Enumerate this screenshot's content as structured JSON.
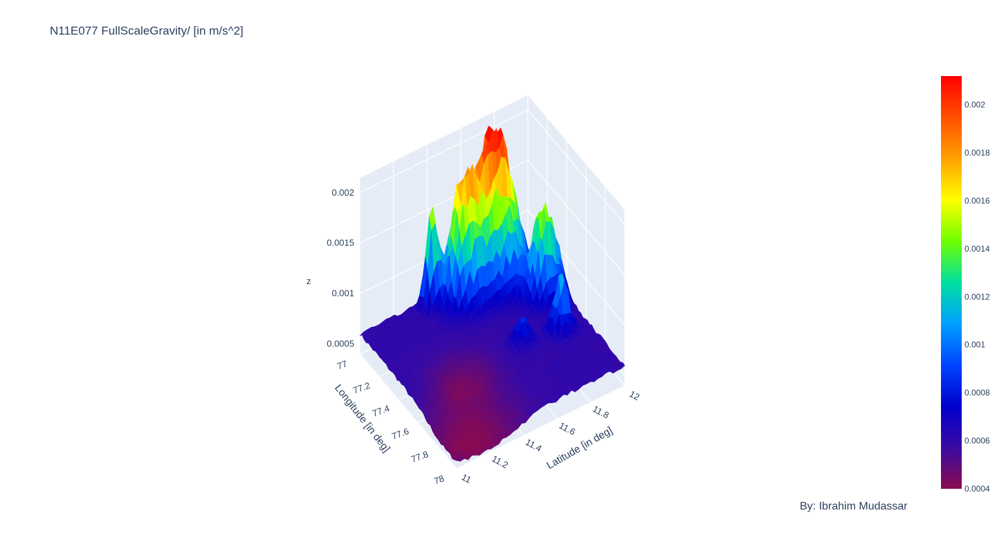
{
  "chart_data": {
    "type": "surface",
    "title": "N11E077 FullScaleGravity/ [in m/s^2]",
    "annotation": "By: Ibrahim Mudassar",
    "colorscale": [
      "#8b0a50",
      "#3a0aa3",
      "#0000cc",
      "#0044ff",
      "#00a0ff",
      "#00e0a0",
      "#70ff00",
      "#ffff00",
      "#ffa000",
      "#ff5000",
      "#ff0000"
    ],
    "x_axis": {
      "title": "Latitude [in deg]",
      "range": [
        11,
        12
      ],
      "ticks": [
        "11",
        "11.2",
        "11.4",
        "11.6",
        "11.8",
        "12"
      ]
    },
    "y_axis": {
      "title": "Longitude [in deg]",
      "range": [
        77,
        78
      ],
      "ticks": [
        "77",
        "77.2",
        "77.4",
        "77.6",
        "77.8",
        "78"
      ]
    },
    "z_axis": {
      "title": "z",
      "range": [
        0.0004,
        0.00215
      ],
      "ticks": [
        "0.0005",
        "0.001",
        "0.0015",
        "0.002"
      ]
    },
    "colorbar": {
      "range": [
        0.0004,
        0.00212
      ],
      "ticks": [
        "0.0004",
        "0.0006",
        "0.0008",
        "0.001",
        "0.0012",
        "0.0014",
        "0.0016",
        "0.0018",
        "0.002"
      ]
    },
    "base_level": 0.0006,
    "features": [
      {
        "lat": 11.75,
        "lon": 77.1,
        "peak": 0.00215,
        "spread": 0.09
      },
      {
        "lat": 11.55,
        "lon": 77.12,
        "peak": 0.00175,
        "spread": 0.07
      },
      {
        "lat": 11.4,
        "lon": 77.05,
        "peak": 0.0016,
        "spread": 0.03
      },
      {
        "lat": 11.9,
        "lon": 77.35,
        "peak": 0.0015,
        "spread": 0.06
      },
      {
        "lat": 11.85,
        "lon": 77.6,
        "peak": 0.0011,
        "spread": 0.04
      },
      {
        "lat": 11.65,
        "lon": 77.55,
        "peak": 0.00085,
        "spread": 0.04
      },
      {
        "lat": 11.15,
        "lon": 77.9,
        "peak": 0.0004,
        "spread": 0.18
      },
      {
        "lat": 11.3,
        "lon": 77.55,
        "peak": 0.00045,
        "spread": 0.12
      }
    ]
  }
}
